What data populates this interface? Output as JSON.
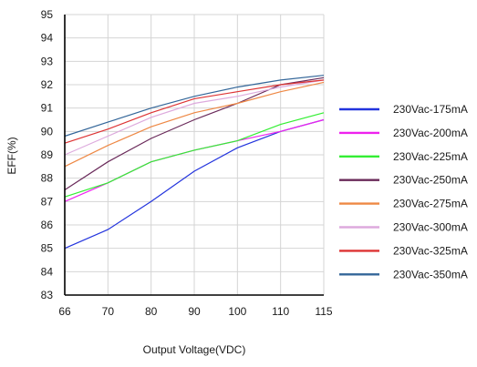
{
  "chart_data": {
    "type": "line",
    "xlabel": "Output Voltage(VDC)",
    "ylabel": "EFF(%)",
    "categories": [
      "66",
      "70",
      "80",
      "90",
      "100",
      "110",
      "115"
    ],
    "ylim": [
      83,
      95
    ],
    "yticks": [
      83,
      84,
      85,
      86,
      87,
      88,
      89,
      90,
      91,
      92,
      93,
      94,
      95
    ],
    "grid": true,
    "legend_position": "right",
    "series": [
      {
        "name": "230Vac-175mA",
        "color": "#2233dd",
        "values": [
          85.0,
          85.8,
          87.0,
          88.3,
          89.3,
          90.0,
          90.5
        ]
      },
      {
        "name": "230Vac-200mA",
        "color": "#ee22ee",
        "values": [
          87.0,
          87.8,
          88.7,
          89.2,
          89.6,
          90.0,
          90.5
        ]
      },
      {
        "name": "230Vac-225mA",
        "color": "#33ee33",
        "values": [
          87.2,
          87.8,
          88.7,
          89.2,
          89.6,
          90.3,
          90.8
        ]
      },
      {
        "name": "230Vac-250mA",
        "color": "#6a2a5a",
        "values": [
          87.5,
          88.7,
          89.7,
          90.5,
          91.2,
          92.0,
          92.3
        ]
      },
      {
        "name": "230Vac-275mA",
        "color": "#ee8844",
        "values": [
          88.5,
          89.4,
          90.2,
          90.8,
          91.2,
          91.7,
          92.1
        ]
      },
      {
        "name": "230Vac-300mA",
        "color": "#ddaadd",
        "values": [
          89.0,
          89.8,
          90.6,
          91.2,
          91.5,
          91.9,
          92.2
        ]
      },
      {
        "name": "230Vac-325mA",
        "color": "#dd3333",
        "values": [
          89.5,
          90.1,
          90.8,
          91.4,
          91.7,
          92.0,
          92.2
        ]
      },
      {
        "name": "230Vac-350mA",
        "color": "#336699",
        "values": [
          89.8,
          90.4,
          91.0,
          91.5,
          91.9,
          92.2,
          92.4
        ]
      }
    ]
  }
}
